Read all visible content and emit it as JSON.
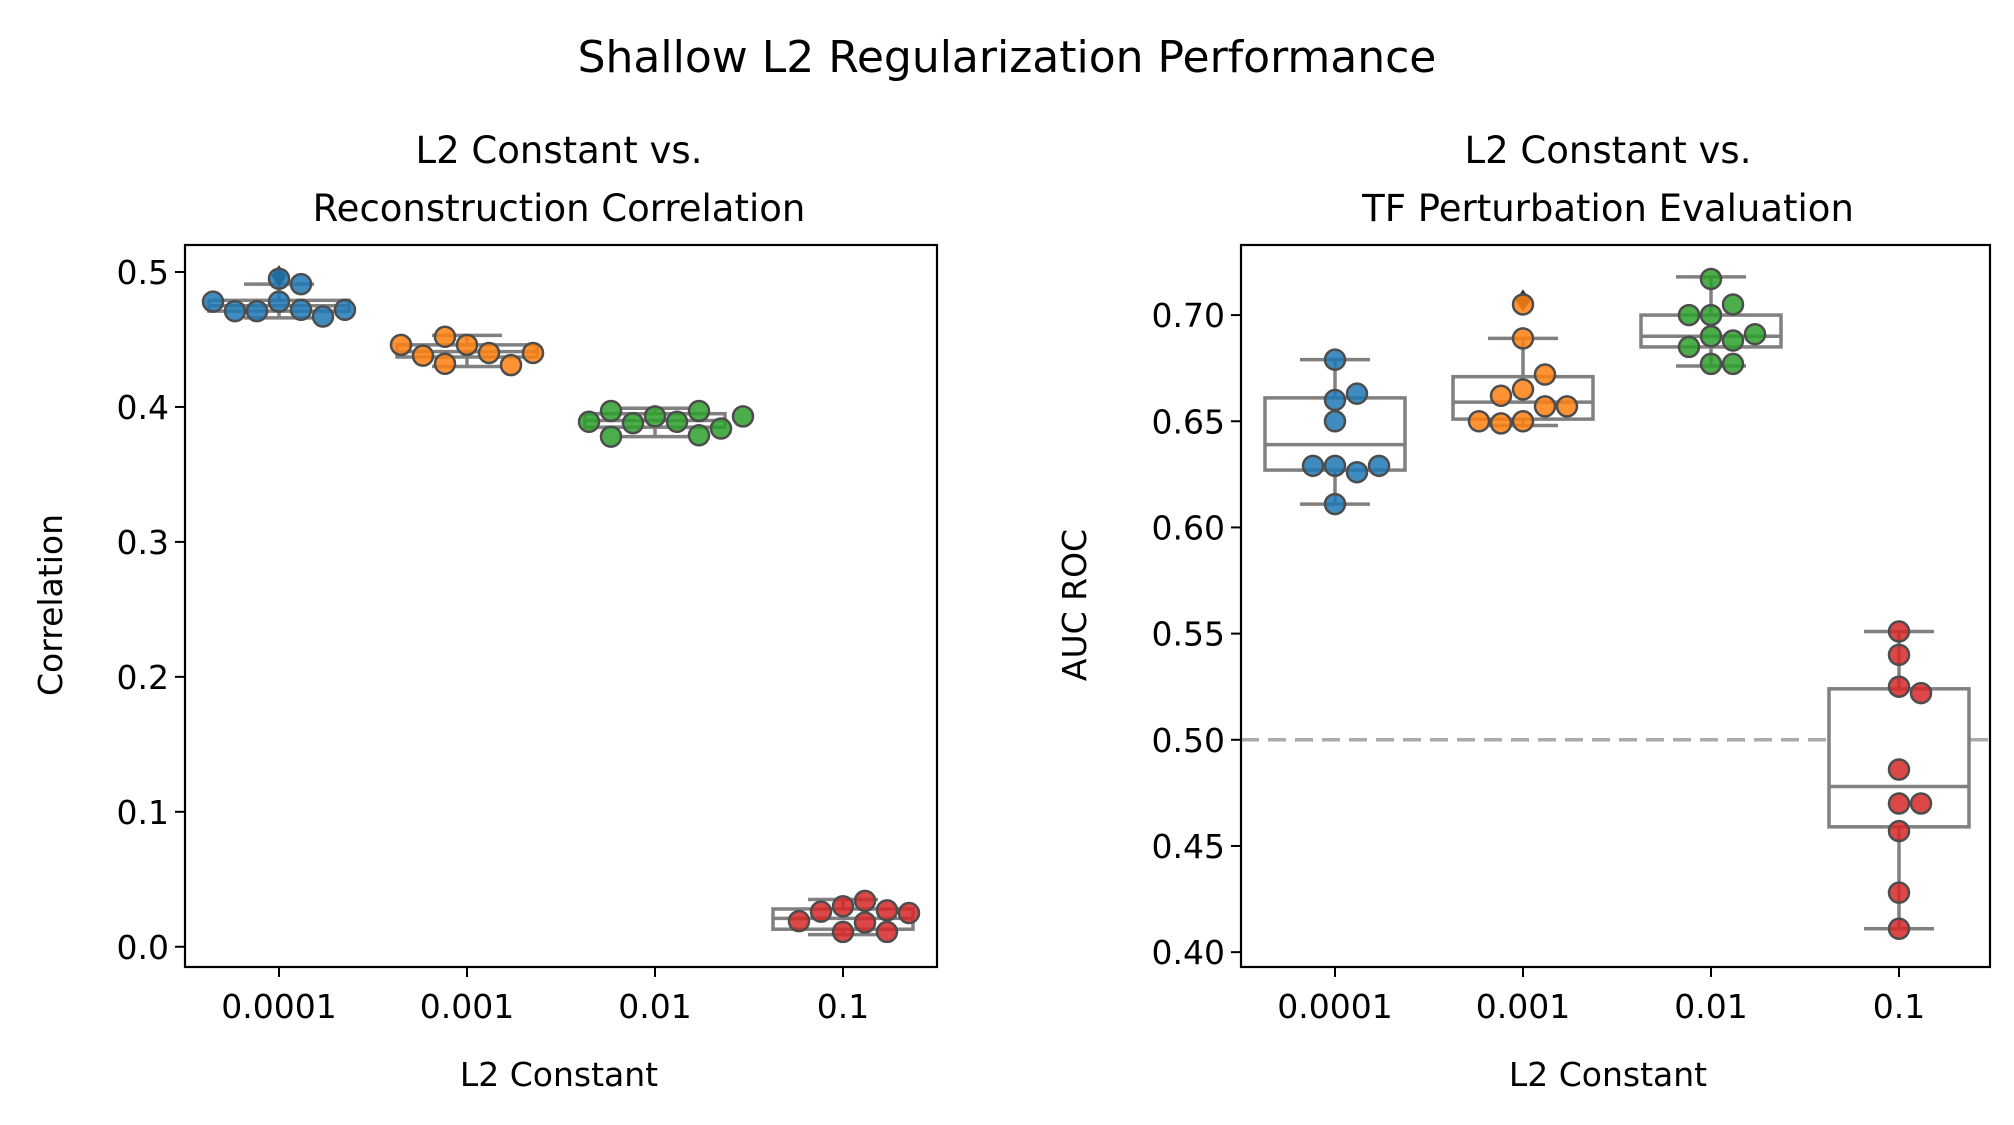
{
  "figure": {
    "title": "Shallow L2 Regularization Performance"
  },
  "colors": {
    "0.0001": "#1f77b4",
    "0.001": "#ff7f0e",
    "0.01": "#2ca02c",
    "0.1": "#d62728",
    "box": "#808080",
    "reference_line": "#aaaaaa",
    "marker_edge": "#4d4d4d"
  },
  "chart_data": [
    {
      "type": "box-swarm",
      "title_lines": [
        "L2 Constant vs.",
        "Reconstruction Correlation"
      ],
      "xlabel": "L2 Constant",
      "ylabel": "Correlation",
      "categories": [
        "0.0001",
        "0.001",
        "0.01",
        "0.1"
      ],
      "ylim": [
        -0.015,
        0.52
      ],
      "yticks": [
        0.0,
        0.1,
        0.2,
        0.3,
        0.4,
        0.5
      ],
      "ytick_labels": [
        "0.0",
        "0.1",
        "0.2",
        "0.3",
        "0.4",
        "0.5"
      ],
      "series": [
        {
          "category": "0.0001",
          "values": [
            0.478,
            0.472,
            0.471,
            0.467,
            0.471,
            0.472,
            0.478,
            0.495,
            0.491
          ],
          "box": {
            "q1": 0.471,
            "median": 0.475,
            "q3": 0.479,
            "whisker_low": 0.466,
            "whisker_high": 0.491
          },
          "outliers": [
            0.497
          ]
        },
        {
          "category": "0.001",
          "values": [
            0.446,
            0.44,
            0.432,
            0.431,
            0.438,
            0.452,
            0.44,
            0.446
          ],
          "box": {
            "q1": 0.437,
            "median": 0.441,
            "q3": 0.446,
            "whisker_low": 0.43,
            "whisker_high": 0.453
          },
          "outliers": []
        },
        {
          "category": "0.01",
          "values": [
            0.393,
            0.389,
            0.388,
            0.397,
            0.379,
            0.378,
            0.397,
            0.384,
            0.389,
            0.393
          ],
          "box": {
            "q1": 0.385,
            "median": 0.39,
            "q3": 0.395,
            "whisker_low": 0.378,
            "whisker_high": 0.399
          },
          "outliers": []
        },
        {
          "category": "0.1",
          "values": [
            0.03,
            0.018,
            0.034,
            0.011,
            0.026,
            0.011,
            0.027,
            0.019,
            0.025
          ],
          "box": {
            "q1": 0.013,
            "median": 0.021,
            "q3": 0.028,
            "whisker_low": 0.009,
            "whisker_high": 0.035
          },
          "outliers": []
        }
      ],
      "grid": false,
      "legend": "none"
    },
    {
      "type": "box-swarm",
      "title_lines": [
        "L2 Constant vs.",
        "TF Perturbation Evaluation"
      ],
      "xlabel": "L2 Constant",
      "ylabel": "AUC ROC",
      "categories": [
        "0.0001",
        "0.001",
        "0.01",
        "0.1"
      ],
      "ylim": [
        0.393,
        0.733
      ],
      "yticks": [
        0.4,
        0.45,
        0.5,
        0.55,
        0.6,
        0.65,
        0.7
      ],
      "ytick_labels": [
        "0.40",
        "0.45",
        "0.50",
        "0.55",
        "0.60",
        "0.65",
        "0.70"
      ],
      "reference_line": 0.5,
      "series": [
        {
          "category": "0.0001",
          "values": [
            0.679,
            0.66,
            0.663,
            0.65,
            0.629,
            0.626,
            0.629,
            0.629,
            0.611
          ],
          "box": {
            "q1": 0.627,
            "median": 0.639,
            "q3": 0.661,
            "whisker_low": 0.611,
            "whisker_high": 0.679
          },
          "outliers": []
        },
        {
          "category": "0.001",
          "values": [
            0.705,
            0.689,
            0.665,
            0.672,
            0.657,
            0.662,
            0.657,
            0.65,
            0.649,
            0.65
          ],
          "box": {
            "q1": 0.651,
            "median": 0.659,
            "q3": 0.671,
            "whisker_low": 0.648,
            "whisker_high": 0.689
          },
          "outliers": [
            0.707
          ]
        },
        {
          "category": "0.01",
          "values": [
            0.717,
            0.7,
            0.705,
            0.7,
            0.69,
            0.688,
            0.691,
            0.685,
            0.677,
            0.677
          ],
          "box": {
            "q1": 0.685,
            "median": 0.69,
            "q3": 0.7,
            "whisker_low": 0.676,
            "whisker_high": 0.718
          },
          "outliers": []
        },
        {
          "category": "0.1",
          "values": [
            0.551,
            0.54,
            0.525,
            0.522,
            0.486,
            0.47,
            0.47,
            0.457,
            0.428,
            0.411
          ],
          "box": {
            "q1": 0.459,
            "median": 0.478,
            "q3": 0.524,
            "whisker_low": 0.411,
            "whisker_high": 0.551
          },
          "outliers": []
        }
      ],
      "grid": false,
      "legend": "none"
    }
  ]
}
